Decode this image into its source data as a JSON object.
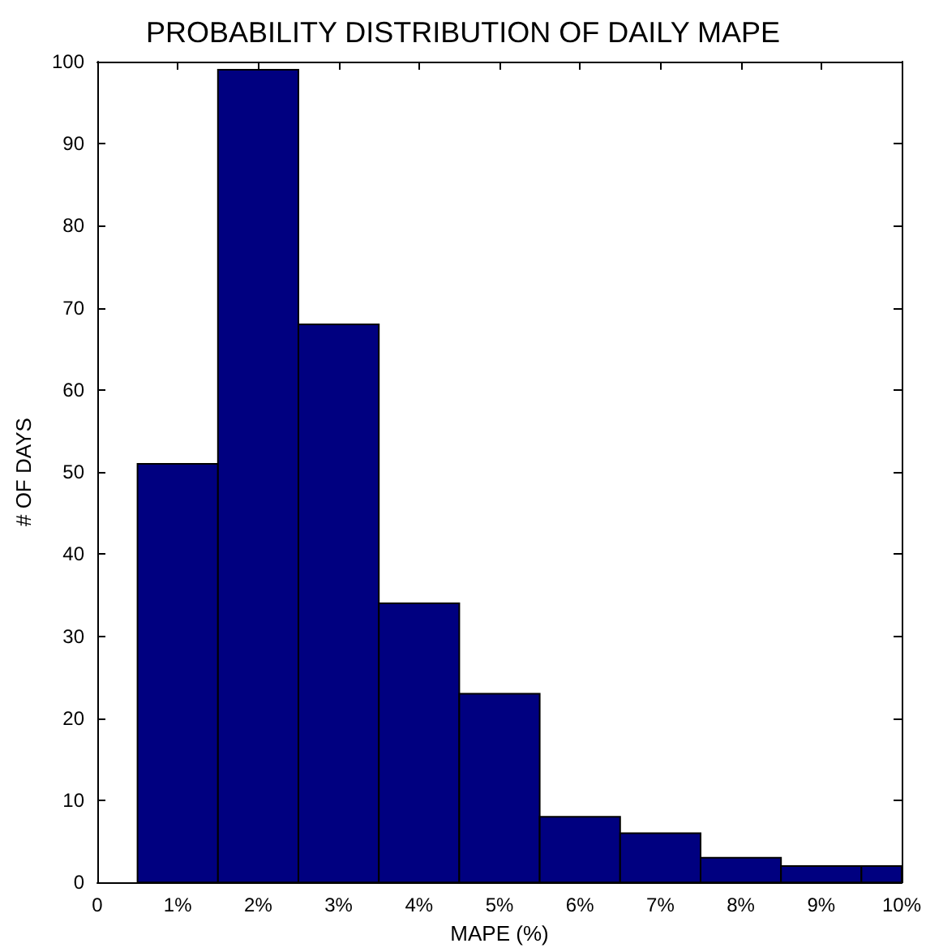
{
  "chart_data": {
    "type": "histogram",
    "title": "PROBABILITY DISTRIBUTION OF DAILY MAPE",
    "xlabel": "MAPE (%)",
    "ylabel": "# OF DAYS",
    "bins": [
      0.5,
      1.5,
      2.5,
      3.5,
      4.5,
      5.5,
      6.5,
      7.5,
      8.5,
      9.5,
      10
    ],
    "values": [
      51,
      99,
      68,
      34,
      23,
      8,
      6,
      3,
      2,
      2
    ],
    "color": "#000080",
    "xlim": [
      0,
      10
    ],
    "xticks": [
      0,
      {
        "value": 1,
        "label": "1%"
      },
      {
        "value": 2,
        "label": "2%"
      },
      {
        "value": 3,
        "label": "3%"
      },
      {
        "value": 4,
        "label": "4%"
      },
      {
        "value": 5,
        "label": "5%"
      },
      {
        "value": 6,
        "label": "6%"
      },
      {
        "value": 7,
        "label": "7%"
      },
      {
        "value": 8,
        "label": "8%"
      },
      {
        "value": 9,
        "label": "9%"
      },
      {
        "value": 10,
        "label": "10%"
      }
    ],
    "ylim": [
      0,
      100
    ],
    "yticks": [
      0,
      10,
      20,
      30,
      40,
      50,
      60,
      70,
      80,
      90,
      100
    ],
    "grid": false
  }
}
